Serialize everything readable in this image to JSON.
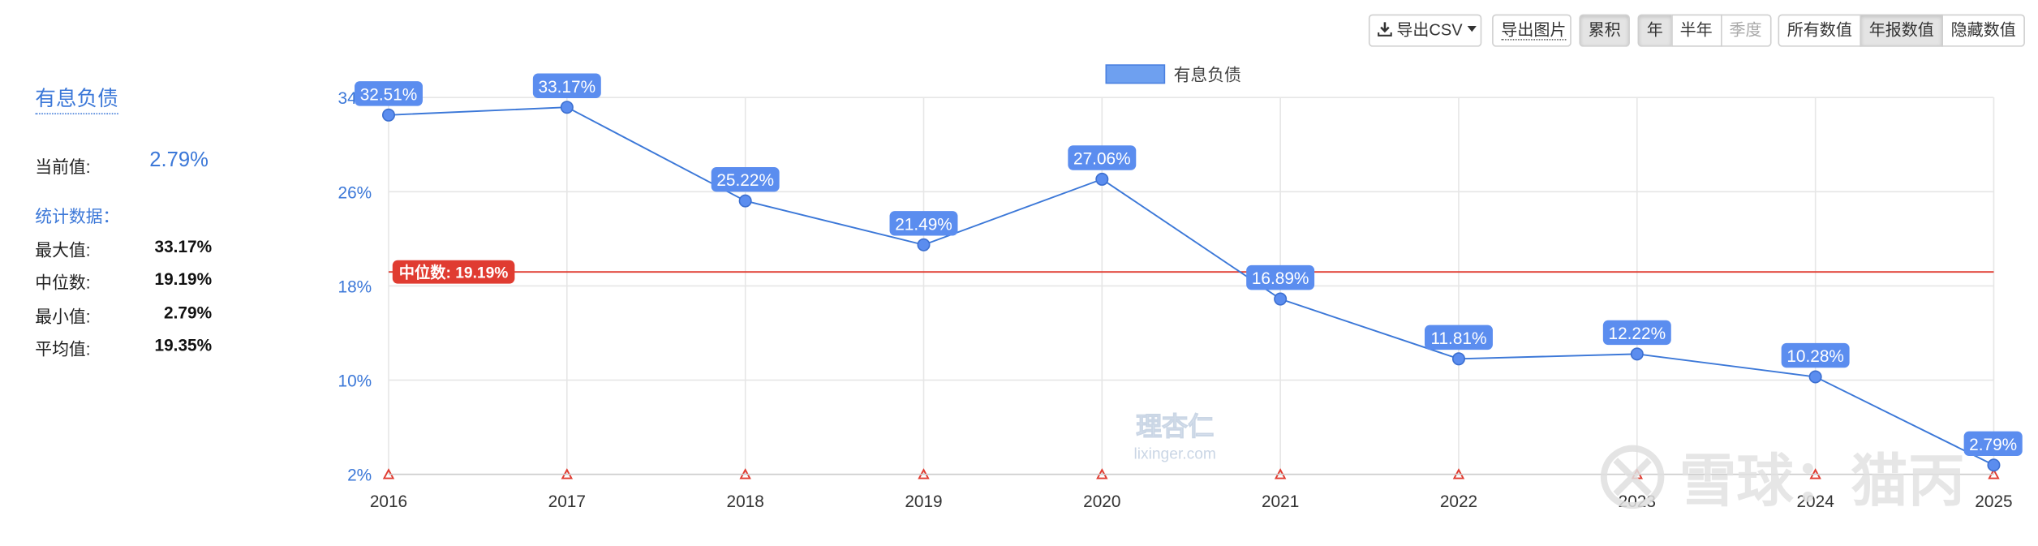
{
  "toolbar": {
    "export_csv": "导出CSV",
    "export_image": "导出图片",
    "cumulative": "累积",
    "period_options": [
      "年",
      "半年",
      "季度"
    ],
    "value_options": [
      "所有数值",
      "年报数值",
      "隐藏数值"
    ],
    "download_icon": "download-icon",
    "dropdown_icon": "caret-down-icon"
  },
  "panel": {
    "title": "有息负债",
    "current_label": "当前值:",
    "current_value": "2.79%",
    "stats_label": "统计数据：",
    "stats": [
      {
        "name": "最大值:",
        "value": "33.17%"
      },
      {
        "name": "中位数:",
        "value": "19.19%"
      },
      {
        "name": "最小值:",
        "value": "2.79%"
      },
      {
        "name": "平均值:",
        "value": "19.35%"
      }
    ]
  },
  "watermarks": {
    "center": "理杏仁",
    "center_url": "lixinger.com",
    "corner": "雪球：猫丙"
  },
  "colors": {
    "line": "#3c78d8",
    "label_bg": "#5b8def",
    "median": "#e03c31",
    "grid": "#e6e6e6",
    "axis_text": "#3c78d8"
  },
  "chart_data": {
    "type": "line",
    "legend": "有息负债",
    "x": [
      "2016",
      "2017",
      "2018",
      "2019",
      "2020",
      "2021",
      "2022",
      "2023",
      "2024",
      "2025"
    ],
    "series": [
      {
        "name": "有息负债",
        "values": [
          32.51,
          33.17,
          25.22,
          21.49,
          27.06,
          16.89,
          11.81,
          12.22,
          10.28,
          2.79
        ],
        "labels": [
          "32.51%",
          "33.17%",
          "25.22%",
          "21.49%",
          "27.06%",
          "16.89%",
          "11.81%",
          "12.22%",
          "10.28%",
          "2.79%"
        ]
      }
    ],
    "median": {
      "value": 19.19,
      "label": "中位数: 19.19%"
    },
    "yticks": [
      34,
      26,
      18,
      10,
      2
    ],
    "ytick_labels": [
      "34%",
      "26%",
      "18%",
      "10%",
      "2%"
    ],
    "ylim": [
      2,
      34
    ],
    "grid": true,
    "legend_position": "top-center"
  }
}
